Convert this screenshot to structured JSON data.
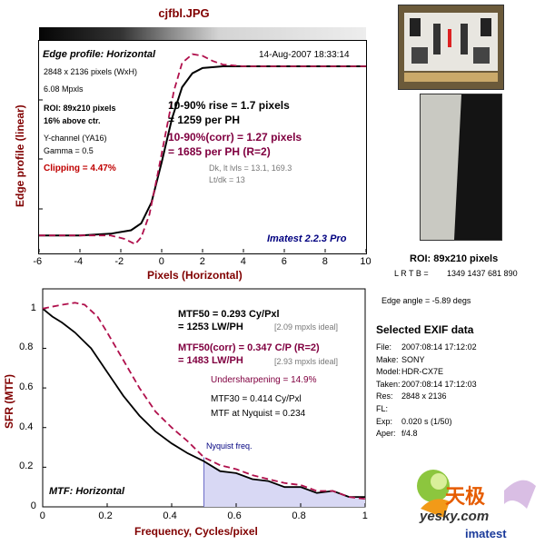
{
  "title": "cjfbl.JPG",
  "colors": {
    "measured": "#000000",
    "corrected": "#b0104c",
    "frame": "#000000",
    "label": "#800000",
    "nyquist_fill": "#d8d8f4"
  },
  "edge_panel": {
    "heading": "Edge profile: Horizontal",
    "timestamp": "14-Aug-2007 18:33:14",
    "size": "2848 x 2136 pixels (WxH)",
    "mpxls": "6.08 Mpxls",
    "roi": "ROI: 89x210 pixels",
    "above_ctr": "16% above ctr.",
    "channel": "Y-channel (YA16)",
    "gamma": "Gamma = 0.5",
    "clipping": "Clipping =   4.47%",
    "rise_1": "10-90% rise = 1.7 pixels",
    "rise_2": "= 1259 per PH",
    "corr_1": "10-90%(corr) = 1.27 pixels",
    "corr_2": "= 1685 per PH   (R=2)",
    "lvls": "Dk, lt lvls = 13.1, 169.3",
    "ltdk": "Lt/dk = 13",
    "version": "Imatest 2.2.3 Pro",
    "ylabel": "Edge profile (linear)",
    "xlabel": "Pixels (Horizontal)"
  },
  "mtf_panel": {
    "mtf50_1": "MTF50 = 0.293 Cy/Pxl",
    "mtf50_2": "= 1253 LW/PH",
    "mtf50_ideal": "[2.09 mpxls ideal]",
    "corr_1": "MTF50(corr) = 0.347  C/P   (R=2)",
    "corr_2": "= 1483 LW/PH",
    "corr_ideal": "[2.93 mpxls ideal]",
    "undersharp": "Undersharpening = 14.9%",
    "mtf30": "MTF30 = 0.414 Cy/Pxl",
    "nyq": "MTF at Nyquist = 0.234",
    "nyq_label": "Nyquist freq.",
    "heading": "MTF: Horizontal",
    "ylabel": "SFR (MTF)",
    "xlabel": "Frequency, Cycles/pixel"
  },
  "side": {
    "roi": "ROI: 89x210 pixels",
    "lrtb_label": "L R  T B =",
    "lrtb": "1349 1437  681 890",
    "angle": "Edge angle = -5.89 degs",
    "exif_title": "Selected EXIF data",
    "exif": [
      {
        "k": "File:",
        "v": "2007:08:14 17:12:02"
      },
      {
        "k": "Make:",
        "v": "SONY"
      },
      {
        "k": "Model:",
        "v": "HDR-CX7E"
      },
      {
        "k": "Taken:",
        "v": "2007:08:14 17:12:03"
      },
      {
        "k": "Res:",
        "v": "2848 x 2136"
      },
      {
        "k": "FL:",
        "v": ""
      },
      {
        "k": "Exp:",
        "v": "0.020 s  (1/50)"
      },
      {
        "k": "Aper:",
        "v": "f/4.8"
      }
    ]
  },
  "watermark": {
    "cn": "天极",
    "site": "yesky.com",
    "brand": "imatest"
  },
  "chart_data": [
    {
      "type": "line",
      "title": "Edge profile: Horizontal",
      "xlabel": "Pixels (Horizontal)",
      "ylabel": "Edge profile (linear)",
      "xlim": [
        -6,
        10
      ],
      "x_ticks": [
        "-6",
        "-4",
        "-2",
        "0",
        "2",
        "4",
        "6",
        "8",
        "10"
      ],
      "series": [
        {
          "x": [
            -6,
            -4,
            -2.5,
            -1.5,
            -1,
            -0.5,
            0,
            0.5,
            1,
            1.5,
            2,
            3,
            4,
            6,
            8,
            10
          ],
          "y": [
            0.03,
            0.03,
            0.04,
            0.06,
            0.1,
            0.22,
            0.45,
            0.7,
            0.88,
            0.96,
            0.99,
            1.0,
            1.0,
            1.0,
            1.0,
            1.0
          ]
        },
        {
          "x": [
            -6,
            -4,
            -2.5,
            -1.8,
            -1.3,
            -1,
            -0.6,
            -0.2,
            0.2,
            0.6,
            1,
            1.5,
            2,
            2.5,
            3,
            4,
            6,
            8,
            10
          ],
          "y": [
            0.03,
            0.03,
            0.03,
            0.01,
            -0.02,
            0.02,
            0.15,
            0.38,
            0.62,
            0.86,
            1.02,
            1.07,
            1.06,
            1.03,
            1.01,
            1.0,
            1.0,
            1.0,
            1.0
          ]
        }
      ]
    },
    {
      "type": "line",
      "title": "MTF: Horizontal",
      "xlabel": "Frequency, Cycles/pixel",
      "ylabel": "SFR (MTF)",
      "xlim": [
        0,
        1
      ],
      "ylim": [
        0,
        1.1
      ],
      "x_ticks": [
        "0",
        "0.2",
        "0.4",
        "0.6",
        "0.8",
        "1"
      ],
      "y_ticks": [
        "0",
        "0.2",
        "0.4",
        "0.6",
        "0.8",
        "1"
      ],
      "nyquist": 0.5,
      "series": [
        {
          "x": [
            0,
            0.03,
            0.06,
            0.1,
            0.15,
            0.2,
            0.25,
            0.3,
            0.35,
            0.4,
            0.45,
            0.5,
            0.55,
            0.6,
            0.65,
            0.7,
            0.75,
            0.8,
            0.85,
            0.9,
            0.95,
            1.0
          ],
          "y": [
            1.0,
            0.96,
            0.93,
            0.88,
            0.8,
            0.68,
            0.56,
            0.46,
            0.38,
            0.32,
            0.27,
            0.23,
            0.18,
            0.17,
            0.14,
            0.13,
            0.1,
            0.1,
            0.07,
            0.08,
            0.05,
            0.05
          ]
        },
        {
          "x": [
            0,
            0.03,
            0.06,
            0.1,
            0.13,
            0.17,
            0.2,
            0.25,
            0.3,
            0.35,
            0.4,
            0.45,
            0.5,
            0.55,
            0.6,
            0.65,
            0.7,
            0.75,
            0.8,
            0.85,
            0.9,
            0.95,
            1.0
          ],
          "y": [
            1.0,
            1.01,
            1.02,
            1.03,
            1.02,
            0.96,
            0.88,
            0.74,
            0.6,
            0.48,
            0.4,
            0.33,
            0.25,
            0.21,
            0.19,
            0.16,
            0.14,
            0.12,
            0.11,
            0.08,
            0.08,
            0.05,
            0.04
          ]
        }
      ]
    }
  ]
}
